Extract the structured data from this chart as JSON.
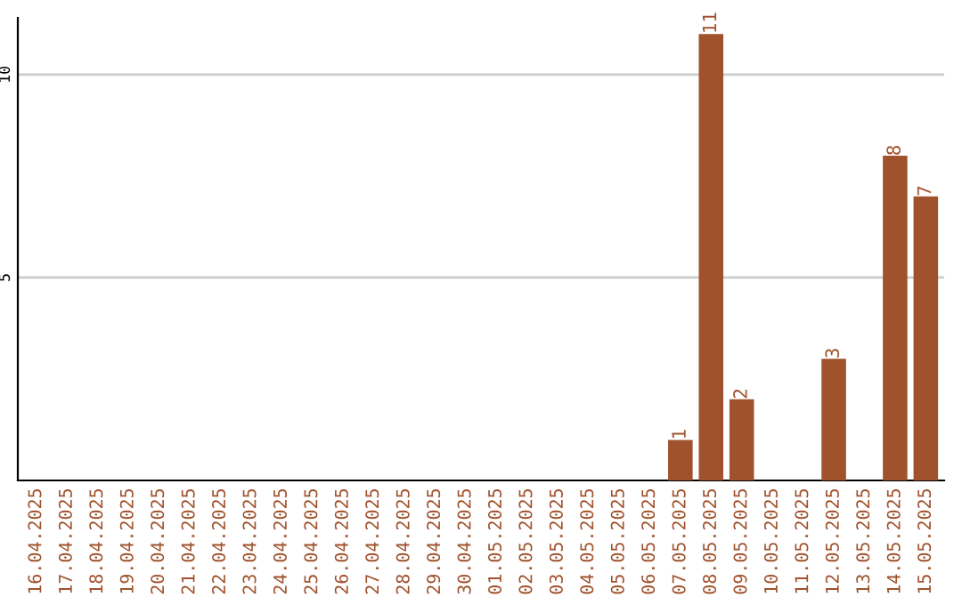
{
  "chart_data": {
    "type": "bar",
    "categories": [
      "16.04.2025",
      "17.04.2025",
      "18.04.2025",
      "19.04.2025",
      "20.04.2025",
      "21.04.2025",
      "22.04.2025",
      "23.04.2025",
      "24.04.2025",
      "25.04.2025",
      "26.04.2025",
      "27.04.2025",
      "28.04.2025",
      "29.04.2025",
      "30.04.2025",
      "01.05.2025",
      "02.05.2025",
      "03.05.2025",
      "04.05.2025",
      "05.05.2025",
      "06.05.2025",
      "07.05.2025",
      "08.05.2025",
      "09.05.2025",
      "10.05.2025",
      "11.05.2025",
      "12.05.2025",
      "13.05.2025",
      "14.05.2025",
      "15.05.2025"
    ],
    "values": [
      0,
      0,
      0,
      0,
      0,
      0,
      0,
      0,
      0,
      0,
      0,
      0,
      0,
      0,
      0,
      0,
      0,
      0,
      0,
      0,
      0,
      1,
      11,
      2,
      0,
      0,
      3,
      0,
      8,
      7
    ],
    "value_labels": [
      null,
      null,
      null,
      null,
      null,
      null,
      null,
      null,
      null,
      null,
      null,
      null,
      null,
      null,
      null,
      null,
      null,
      null,
      null,
      null,
      null,
      "1",
      "11",
      "2",
      null,
      null,
      "3",
      null,
      "8",
      "7"
    ],
    "color": "#a0522d",
    "ylim": [
      0,
      11.4
    ],
    "yticks": [
      5,
      10
    ],
    "grid": "y"
  }
}
